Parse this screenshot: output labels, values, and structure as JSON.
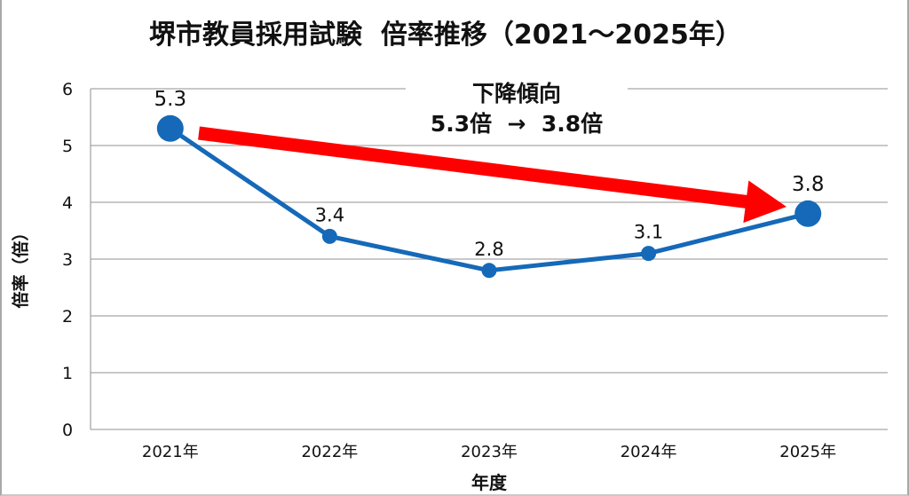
{
  "title": "堺市教員採用試験  倍率推移（2021〜2025年）",
  "annotation": {
    "line1": "下降傾向",
    "line2": "5.3倍  →  3.8倍"
  },
  "colors": {
    "line": "#1569b8",
    "arrow": "#ff0000",
    "grid": "#a6a6a6",
    "text": "#111111"
  },
  "chart_data": {
    "type": "line",
    "title": "堺市教員採用試験  倍率推移（2021〜2025年）",
    "xlabel": "年度",
    "ylabel": "倍率（倍）",
    "categories": [
      "2021年",
      "2022年",
      "2023年",
      "2024年",
      "2025年"
    ],
    "series": [
      {
        "name": "倍率",
        "values": [
          5.3,
          3.4,
          2.8,
          3.1,
          3.8
        ]
      }
    ],
    "data_labels": [
      "5.3",
      "3.4",
      "2.8",
      "3.1",
      "3.8"
    ],
    "ylim": [
      0,
      6
    ],
    "yticks": [
      0,
      1,
      2,
      3,
      4,
      5,
      6
    ],
    "grid": true,
    "legend": "none",
    "annotations": [
      {
        "type": "arrow",
        "from": "2021年",
        "to": "2025年",
        "color": "#ff0000"
      },
      {
        "type": "text",
        "text": "下降傾向 5.3倍 → 3.8倍"
      }
    ]
  }
}
